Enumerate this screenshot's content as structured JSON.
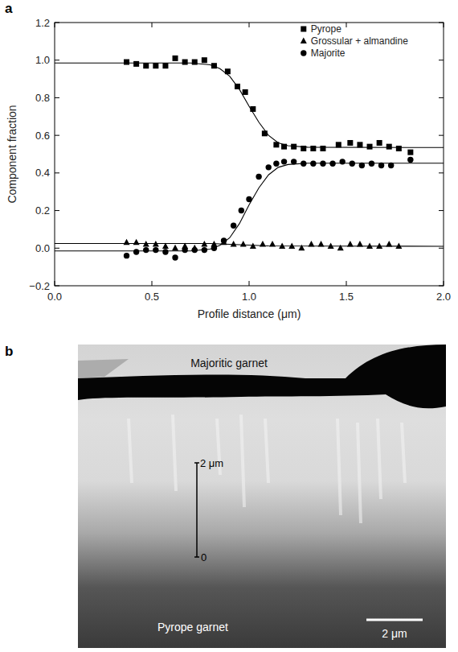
{
  "chart_data": {
    "type": "scatter",
    "panel_label": "a",
    "xlabel": "Profile distance (μm)",
    "ylabel": "Component fraction",
    "xlim": [
      0,
      2
    ],
    "ylim": [
      -0.2,
      1.2
    ],
    "xticks": [
      {
        "value": 0,
        "label": "0.0"
      },
      0.5,
      {
        "value": 1,
        "label": "1.0"
      },
      1.5,
      {
        "value": 2,
        "label": "2.0"
      }
    ],
    "yticks": [
      {
        "value": -0.2,
        "label": "−0.2"
      },
      {
        "value": 0,
        "label": "0.0"
      },
      0.2,
      0.4,
      0.6,
      0.8,
      {
        "value": 1,
        "label": "1.0"
      },
      1.2
    ],
    "legend": "top-right",
    "series": [
      {
        "name": "Pyrope",
        "color": "#000000",
        "marker": "square",
        "x": [
          0.37,
          0.42,
          0.47,
          0.52,
          0.57,
          0.62,
          0.67,
          0.72,
          0.77,
          0.82,
          0.89,
          0.94,
          0.98,
          1.02,
          1.08,
          1.14,
          1.18,
          1.23,
          1.28,
          1.33,
          1.38,
          1.46,
          1.52,
          1.57,
          1.62,
          1.67,
          1.72,
          1.77,
          1.83
        ],
        "values": [
          0.99,
          0.98,
          0.97,
          0.97,
          0.97,
          1.01,
          0.99,
          0.99,
          1.0,
          0.97,
          0.94,
          0.86,
          0.83,
          0.74,
          0.61,
          0.55,
          0.54,
          0.54,
          0.53,
          0.53,
          0.53,
          0.55,
          0.56,
          0.55,
          0.54,
          0.56,
          0.54,
          0.53,
          0.51
        ],
        "fit": {
          "x": [
            0,
            0.7,
            0.8,
            0.85,
            0.9,
            0.95,
            1.0,
            1.05,
            1.1,
            1.15,
            1.2,
            1.3,
            2.0
          ],
          "values": [
            0.985,
            0.985,
            0.975,
            0.955,
            0.915,
            0.845,
            0.755,
            0.67,
            0.6,
            0.56,
            0.545,
            0.537,
            0.535
          ]
        }
      },
      {
        "name": "Grossular + almandine",
        "color": "#000000",
        "marker": "triangle",
        "x": [
          0.37,
          0.42,
          0.47,
          0.52,
          0.57,
          0.62,
          0.67,
          0.72,
          0.77,
          0.82,
          0.87,
          0.92,
          0.97,
          1.02,
          1.07,
          1.12,
          1.17,
          1.22,
          1.27,
          1.32,
          1.37,
          1.42,
          1.47,
          1.52,
          1.57,
          1.62,
          1.67,
          1.72,
          1.77
        ],
        "values": [
          0.03,
          0.03,
          0.02,
          0.02,
          0.01,
          0.0,
          0.01,
          0.0,
          0.02,
          0.02,
          0.03,
          0.02,
          0.02,
          0.01,
          0.02,
          0.02,
          0.01,
          0.01,
          0.0,
          0.02,
          0.02,
          0.01,
          0.0,
          0.02,
          0.02,
          0.01,
          0.01,
          0.02,
          0.01
        ],
        "fit": {
          "x": [
            0,
            0.8,
            1.1,
            2.0
          ],
          "values": [
            0.025,
            0.025,
            0.012,
            0.01
          ]
        }
      },
      {
        "name": "Majorite",
        "color": "#000000",
        "marker": "circle",
        "x": [
          0.37,
          0.42,
          0.47,
          0.52,
          0.57,
          0.62,
          0.67,
          0.72,
          0.77,
          0.82,
          0.87,
          0.92,
          0.96,
          1.0,
          1.05,
          1.1,
          1.14,
          1.18,
          1.23,
          1.28,
          1.33,
          1.38,
          1.43,
          1.48,
          1.53,
          1.58,
          1.63,
          1.68,
          1.73,
          1.83
        ],
        "values": [
          -0.04,
          -0.02,
          -0.01,
          -0.01,
          -0.02,
          -0.05,
          -0.01,
          -0.01,
          -0.01,
          0.0,
          0.04,
          0.12,
          0.2,
          0.26,
          0.38,
          0.43,
          0.45,
          0.46,
          0.46,
          0.45,
          0.45,
          0.45,
          0.45,
          0.46,
          0.45,
          0.44,
          0.45,
          0.44,
          0.44,
          0.47
        ],
        "fit": {
          "x": [
            0,
            0.7,
            0.8,
            0.85,
            0.9,
            0.95,
            1.0,
            1.05,
            1.1,
            1.15,
            1.2,
            1.3,
            2.0
          ],
          "values": [
            -0.015,
            -0.015,
            -0.005,
            0.015,
            0.055,
            0.13,
            0.23,
            0.32,
            0.39,
            0.43,
            0.445,
            0.452,
            0.452
          ]
        }
      }
    ]
  },
  "micrograph": {
    "panel_label": "b",
    "top_label": "Majoritic garnet",
    "bottom_label": "Pyrope garnet",
    "profile_marker": {
      "top_label": "2 μm",
      "bottom_label": "0"
    },
    "scale_bar_label": "2 μm"
  }
}
